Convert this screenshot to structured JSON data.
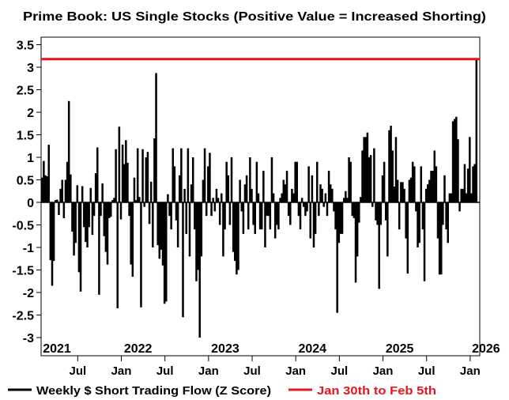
{
  "chart_data": {
    "type": "bar",
    "title": "Prime Book: US Single Stocks (Positive Value = Increased Shorting)",
    "xlabel": "",
    "ylabel": "",
    "ylim": [
      -3.4,
      3.5
    ],
    "xlim": [
      2021.08,
      2026.11
    ],
    "x_start": 2021.08,
    "x_step_years": 0.01923,
    "grid": false,
    "legend_placement": "bottom",
    "yticks": [
      "3.5",
      "3",
      "2.5",
      "2",
      "1.5",
      "1",
      "0.5",
      "0",
      "-0.5",
      "-1",
      "-1.5",
      "-2",
      "-2.5",
      "-3"
    ],
    "ytick_values": [
      3.5,
      3,
      2.5,
      2,
      1.5,
      1,
      0.5,
      0,
      -0.5,
      -1,
      -1.5,
      -2,
      -2.5,
      -3
    ],
    "year_labels": [
      {
        "label": "2021",
        "x": 2021.1
      },
      {
        "label": "2022",
        "x": 2022.03
      },
      {
        "label": "2023",
        "x": 2023.03
      },
      {
        "label": "2024",
        "x": 2024.03
      },
      {
        "label": "2025",
        "x": 2025.03
      },
      {
        "label": "2026",
        "x": 2026.02
      }
    ],
    "month_ticks": [
      {
        "label": "Jul",
        "x": 2021.5
      },
      {
        "label": "Jan",
        "x": 2022.0
      },
      {
        "label": "Jul",
        "x": 2022.5
      },
      {
        "label": "Jan",
        "x": 2023.0
      },
      {
        "label": "Jul",
        "x": 2023.5
      },
      {
        "label": "Jan",
        "x": 2024.0
      },
      {
        "label": "Jul",
        "x": 2024.5
      },
      {
        "label": "Jan",
        "x": 2025.0
      },
      {
        "label": "Jul",
        "x": 2025.5
      },
      {
        "label": "Jan",
        "x": 2026.0
      }
    ],
    "series": [
      {
        "name": "Weekly $ Short Trading Flow (Z Score)",
        "color": "#000000",
        "values": [
          0.55,
          0.92,
          0.6,
          0.58,
          1.28,
          -1.28,
          -1.85,
          -1.3,
          0.05,
          0.06,
          -0.28,
          0.3,
          0.5,
          -0.35,
          0.5,
          0.9,
          2.25,
          0.62,
          -0.65,
          -1.18,
          -0.9,
          0.38,
          -1.55,
          -1.98,
          0.36,
          -0.55,
          -0.88,
          -1.0,
          -0.55,
          0.32,
          -0.72,
          -0.3,
          0.65,
          1.22,
          -2.05,
          -0.3,
          0.42,
          -0.75,
          -1.1,
          -1.38,
          -0.35,
          -0.32,
          0.05,
          0.1,
          1.18,
          -2.35,
          1.68,
          -0.38,
          1.28,
          0.85,
          1.38,
          0.88,
          -0.3,
          -1.38,
          -1.65,
          0.55,
          0.05,
          1.2,
          0.12,
          -2.33,
          1.18,
          -0.1,
          1.0,
          1.12,
          -0.48,
          0.46,
          -1.0,
          1.42,
          2.87,
          -0.95,
          -1.25,
          -1.05,
          -1.4,
          -2.25,
          -2.2,
          0.18,
          -0.3,
          -0.6,
          1.2,
          0.8,
          -0.4,
          -1.0,
          0.6,
          1.2,
          -2.55,
          0.3,
          -0.7,
          1.2,
          -1.2,
          0.4,
          1.0,
          -0.6,
          -1.75,
          -1.5,
          -3.0,
          -1.2,
          0.5,
          1.2,
          -0.3,
          0.8,
          1.1,
          -0.3,
          0.1,
          -0.2,
          0.3,
          0.1,
          -0.5,
          0.2,
          -1.2,
          -0.6,
          0.9,
          0.6,
          -0.5,
          1.0,
          -1.1,
          -1.3,
          -1.6,
          -1.5,
          0.5,
          -0.2,
          -0.7,
          0.4,
          0.6,
          -0.6,
          1.0,
          0.3,
          -0.5,
          -0.7,
          0.9,
          0.2,
          -0.6,
          -0.6,
          0.7,
          -1.0,
          -0.3,
          -0.3,
          -0.6,
          1.0,
          0.2,
          -0.8,
          -0.5,
          -0.6,
          0.1,
          0.2,
          0.5,
          0.4,
          0.7,
          -0.3,
          -0.5,
          0.3,
          0.2,
          0.9,
          0.9,
          -0.3,
          -0.6,
          0.1,
          -0.1,
          -0.3,
          -0.2,
          0.8,
          -0.8,
          0.6,
          -1.0,
          -0.7,
          0.9,
          -0.3,
          0.4,
          0.3,
          -0.1,
          0.2,
          -0.3,
          0.7,
          0.4,
          0.3,
          -0.2,
          -0.6,
          -2.45,
          -0.9,
          -0.7,
          -0.7,
          0.1,
          0.25,
          0.1,
          1.0,
          0.9,
          -0.3,
          -0.35,
          -1.78,
          -1.2,
          -0.45,
          0.12,
          1.15,
          1.45,
          1.45,
          1.55,
          1.0,
          1.05,
          -0.1,
          1.2,
          -0.4,
          -0.5,
          -1.92,
          -0.5,
          0.6,
          0.9,
          -0.4,
          -1.2,
          1.6,
          1.7,
          1.15,
          0.35,
          1.45,
          0.5,
          -0.6,
          0.45,
          0.45,
          0.3,
          -0.8,
          -1.58,
          0.5,
          0.55,
          0.9,
          0.8,
          -0.2,
          -1.0,
          -0.9,
          0.8,
          -0.6,
          -1.75,
          0.3,
          0.4,
          0.5,
          0.7,
          0.7,
          1.15,
          0.8,
          -0.8,
          -1.6,
          -1.6,
          -0.5,
          0.6,
          -0.6,
          -0.9,
          0.2,
          0.2,
          1.8,
          1.85,
          1.9,
          1.4,
          -0.2,
          0.3,
          0.3,
          0.85,
          0.2,
          0.75,
          1.45,
          0.2,
          0.8,
          0.85,
          3.2
        ]
      },
      {
        "name": "Jan 30th to Feb 5th",
        "color": "#e8141c",
        "type": "hline",
        "value": 3.18
      }
    ]
  }
}
